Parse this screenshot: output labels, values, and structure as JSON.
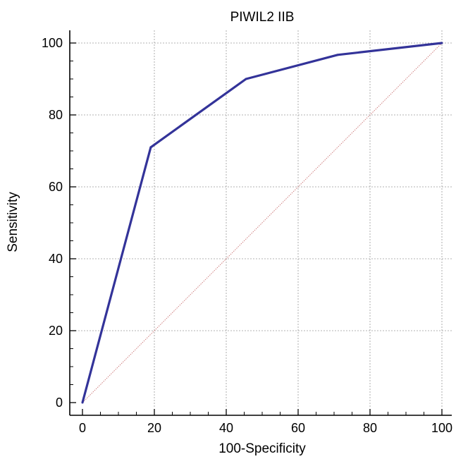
{
  "chart_data": {
    "type": "line",
    "title": "PIWIL2 IIB",
    "xlabel": "100-Specificity",
    "ylabel": "Sensitivity",
    "xlim": [
      0,
      100
    ],
    "ylim": [
      0,
      100
    ],
    "xticks": [
      0,
      20,
      40,
      60,
      80,
      100
    ],
    "yticks": [
      0,
      20,
      40,
      60,
      80,
      100
    ],
    "grid": true,
    "series": [
      {
        "values_x": [
          0,
          19,
          45.5,
          71,
          100
        ],
        "values_y": [
          0,
          71,
          90,
          96.7,
          100
        ],
        "color": "#333399"
      },
      {
        "values_x": [
          0,
          100
        ],
        "values_y": [
          0,
          100
        ],
        "color": "#d08080",
        "style": "dotted"
      }
    ]
  }
}
